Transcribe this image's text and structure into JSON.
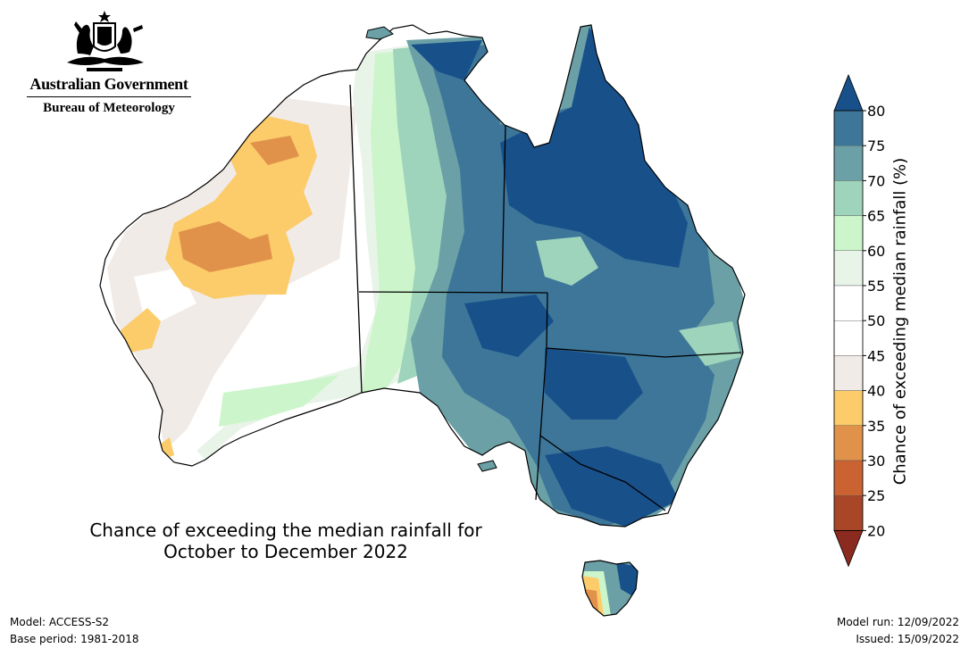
{
  "branding": {
    "government": "Australian Government",
    "bureau": "Bureau of Meteorology"
  },
  "title": {
    "line1": "Chance of exceeding the median rainfall for",
    "line2": "October to December 2022"
  },
  "footer": {
    "model": "Model: ACCESS-S2",
    "base_period": "Base period: 1981-2018",
    "model_run": "Model run: 12/09/2022",
    "issued": "Issued: 15/09/2022"
  },
  "colorbar": {
    "label": "Chance of exceeding median rainfall (%)",
    "ticks": [
      80,
      75,
      70,
      65,
      60,
      55,
      50,
      45,
      40,
      35,
      30,
      25,
      20
    ],
    "bins": [
      {
        "range": "above 80",
        "color": "#18508a"
      },
      {
        "range": "75-80",
        "color": "#3d7699"
      },
      {
        "range": "70-75",
        "color": "#6aa0a6"
      },
      {
        "range": "65-70",
        "color": "#9ed4bb"
      },
      {
        "range": "60-65",
        "color": "#ccf5cb"
      },
      {
        "range": "55-60",
        "color": "#e9f4e9"
      },
      {
        "range": "50-55",
        "color": "#ffffff"
      },
      {
        "range": "45-50",
        "color": "#ffffff"
      },
      {
        "range": "40-45",
        "color": "#f0ebe6"
      },
      {
        "range": "35-40",
        "color": "#fccb6a"
      },
      {
        "range": "30-35",
        "color": "#e1924a"
      },
      {
        "range": "25-30",
        "color": "#cb6231"
      },
      {
        "range": "20-25",
        "color": "#aa4628"
      },
      {
        "range": "below 20",
        "color": "#8b2b1f"
      }
    ]
  },
  "map_colors": {
    "ocean": "#ffffff",
    "coast": "#000000",
    "very_wet": "#18508a",
    "wet": "#3d7699",
    "moderately_wet": "#6aa0a6",
    "slightly_wet": "#9ed4bb",
    "light_green": "#ccf5cb",
    "pale": "#e9f4e9",
    "neutral": "#ffffff",
    "grey": "#f0ebe6",
    "yellow": "#fccb6a",
    "orange": "#e1924a"
  }
}
